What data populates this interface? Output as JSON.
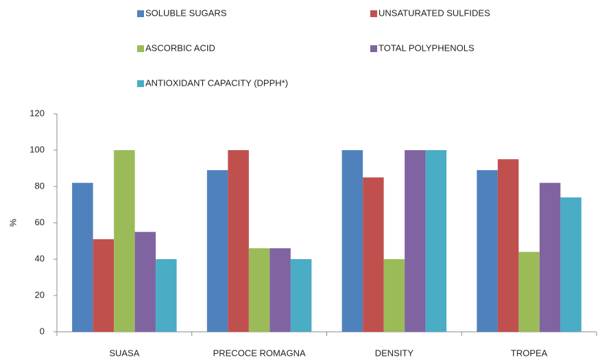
{
  "chart_data": {
    "type": "bar",
    "ylabel": "%",
    "categories": [
      "SUASA",
      "PRECOCE ROMAGNA",
      "DENSITY",
      "TROPEA"
    ],
    "series": [
      {
        "name": "SOLUBLE SUGARS",
        "color": "#4f81bd",
        "values": [
          82,
          89,
          100,
          89
        ]
      },
      {
        "name": "UNSATURATED  SULFIDES",
        "color": "#c0504d",
        "values": [
          51,
          100,
          85,
          95
        ]
      },
      {
        "name": "ASCORBIC ACID",
        "color": "#9bbb59",
        "values": [
          100,
          46,
          40,
          44
        ]
      },
      {
        "name": "TOTAL POLYPHENOLS",
        "color": "#8064a2",
        "values": [
          55,
          46,
          100,
          82
        ]
      },
      {
        "name": "ANTIOXIDANT CAPACITY (DPPH*)",
        "color": "#4bacc6",
        "values": [
          40,
          40,
          100,
          74
        ]
      }
    ],
    "ylim": [
      0,
      120
    ],
    "yticks": [
      0,
      20,
      40,
      60,
      80,
      100,
      120
    ],
    "grid": false
  }
}
